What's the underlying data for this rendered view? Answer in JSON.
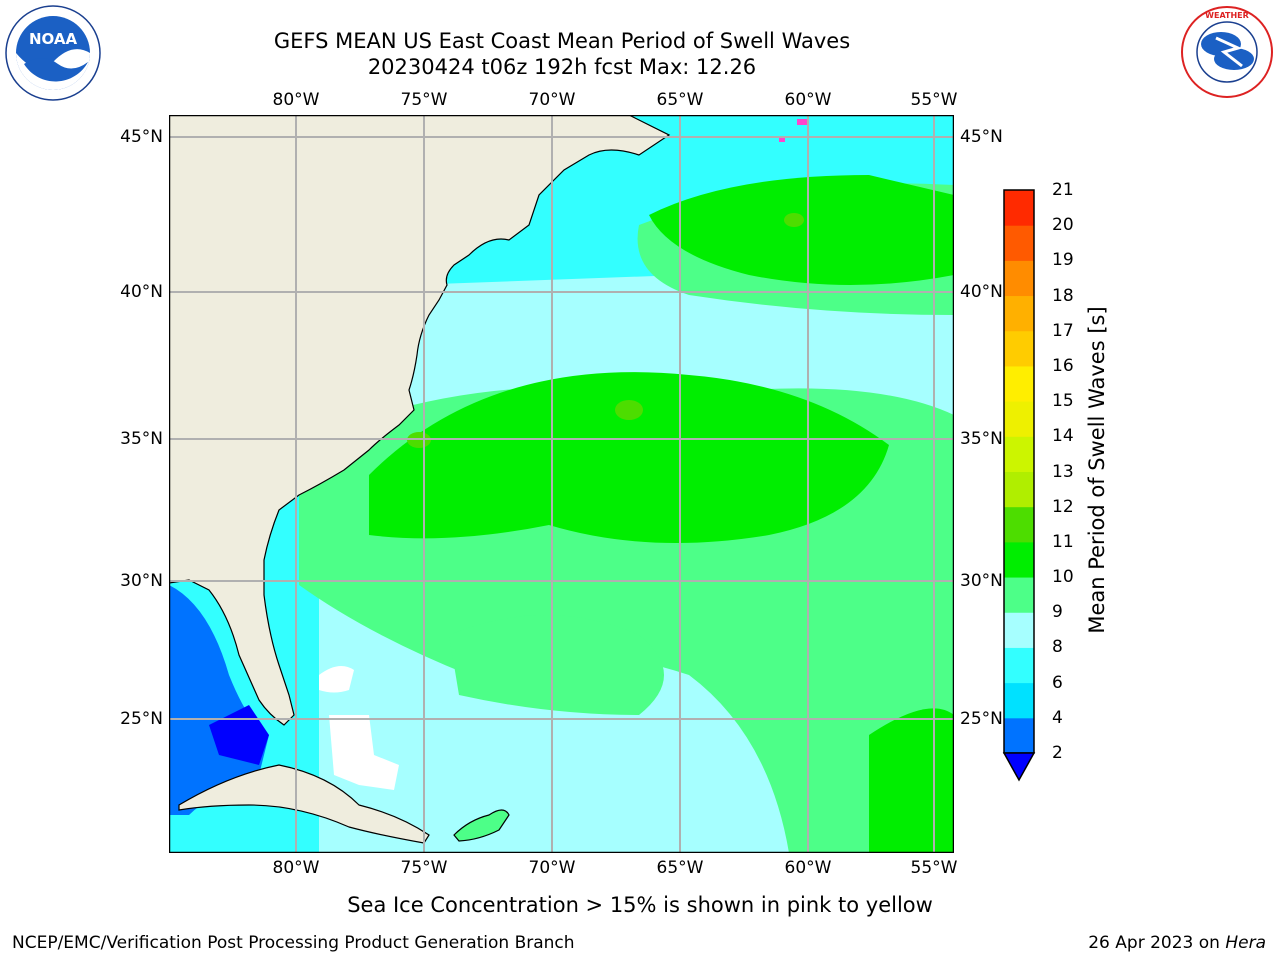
{
  "header": {
    "title_line1": "GEFS MEAN US East Coast Mean Period of Swell Waves",
    "title_line2": "20230424 t06z 192h fcst   Max: 12.26"
  },
  "logos": {
    "noaa": {
      "text": "NOAA",
      "ring_text": "NATIONAL OCEANIC AND ATMOSPHERIC ADMINISTRATION · U.S. DEPARTMENT OF COMMERCE"
    },
    "nws": {
      "ring_text": "NATIONAL WEATHER SERVICE"
    }
  },
  "map": {
    "lon_labels": [
      "80°W",
      "75°W",
      "70°W",
      "65°W",
      "60°W",
      "55°W"
    ],
    "lat_labels": [
      "45°N",
      "40°N",
      "35°N",
      "30°N",
      "25°N"
    ],
    "lon_values": [
      -80,
      -75,
      -70,
      -65,
      -60,
      -55
    ],
    "lat_values": [
      45,
      40,
      35,
      30,
      25
    ],
    "land_color": "#efedde",
    "grid_color": "#b0b0b0"
  },
  "colorbar": {
    "title": "Mean Period of Swell Waves [s]",
    "levels": [
      "2",
      "4",
      "6",
      "8",
      "9",
      "10",
      "11",
      "12",
      "13",
      "14",
      "15",
      "16",
      "17",
      "18",
      "19",
      "20",
      "21"
    ],
    "colors": [
      "#0073ff",
      "#00e1ff",
      "#33ffff",
      "#a6ffff",
      "#4dff88",
      "#00ee00",
      "#4ddd00",
      "#b0ee00",
      "#ccf500",
      "#eef000",
      "#ffee00",
      "#ffcc00",
      "#ffb000",
      "#ff8c00",
      "#ff5a00",
      "#ff2a00",
      "#ff0000"
    ],
    "extend_color": "#0000ff"
  },
  "footer": {
    "note": "Sea Ice Concentration > 15% is shown in pink to yellow",
    "credit": "NCEP/EMC/Verification Post Processing Product Generation Branch",
    "date": "26 Apr 2023 on ",
    "machine": "Hera"
  }
}
